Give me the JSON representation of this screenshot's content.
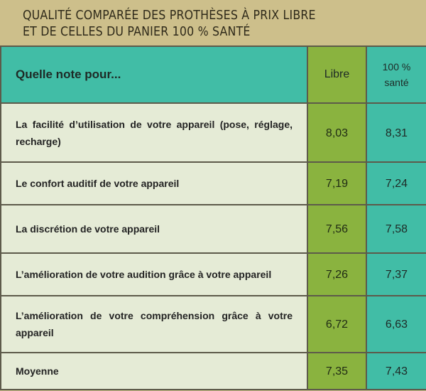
{
  "title_lines": [
    "QUALITÉ COMPARÉE DES PROTHÈSES À PRIX LIBRE",
    "ET DE CELLES DU PANIER 100 % SANTÉ"
  ],
  "header": {
    "question": "Quelle note pour...",
    "col_libre": "Libre",
    "col_sante_line1": "100 %",
    "col_sante_line2": "santé"
  },
  "colors": {
    "frame": "#cdbf8b",
    "libre": "#8ab33f",
    "sante": "#41bda6",
    "label_bg": "#e5ebd6"
  },
  "chart_data": {
    "type": "table",
    "title": "QUALITÉ COMPARÉE DES PROTHÈSES À PRIX LIBRE ET DE CELLES DU PANIER 100 % SANTÉ",
    "columns": [
      "Quelle note pour...",
      "Libre",
      "100 % santé"
    ],
    "rows": [
      {
        "label": "La facilité d’utilisation de votre appareil (pose, réglage, recharge)",
        "libre": "8,03",
        "sante": "8,31"
      },
      {
        "label": "Le confort auditif de votre appareil",
        "libre": "7,19",
        "sante": "7,24"
      },
      {
        "label": "La discrétion de votre appareil",
        "libre": "7,56",
        "sante": "7,58"
      },
      {
        "label": "L’amélioration de votre audition grâce à votre appareil",
        "libre": "7,26",
        "sante": "7,37"
      },
      {
        "label": "L’amélioration de votre compréhension grâce à votre appareil",
        "libre": "6,72",
        "sante": "6,63"
      },
      {
        "label": "Moyenne",
        "libre": "7,35",
        "sante": "7,43"
      }
    ]
  }
}
